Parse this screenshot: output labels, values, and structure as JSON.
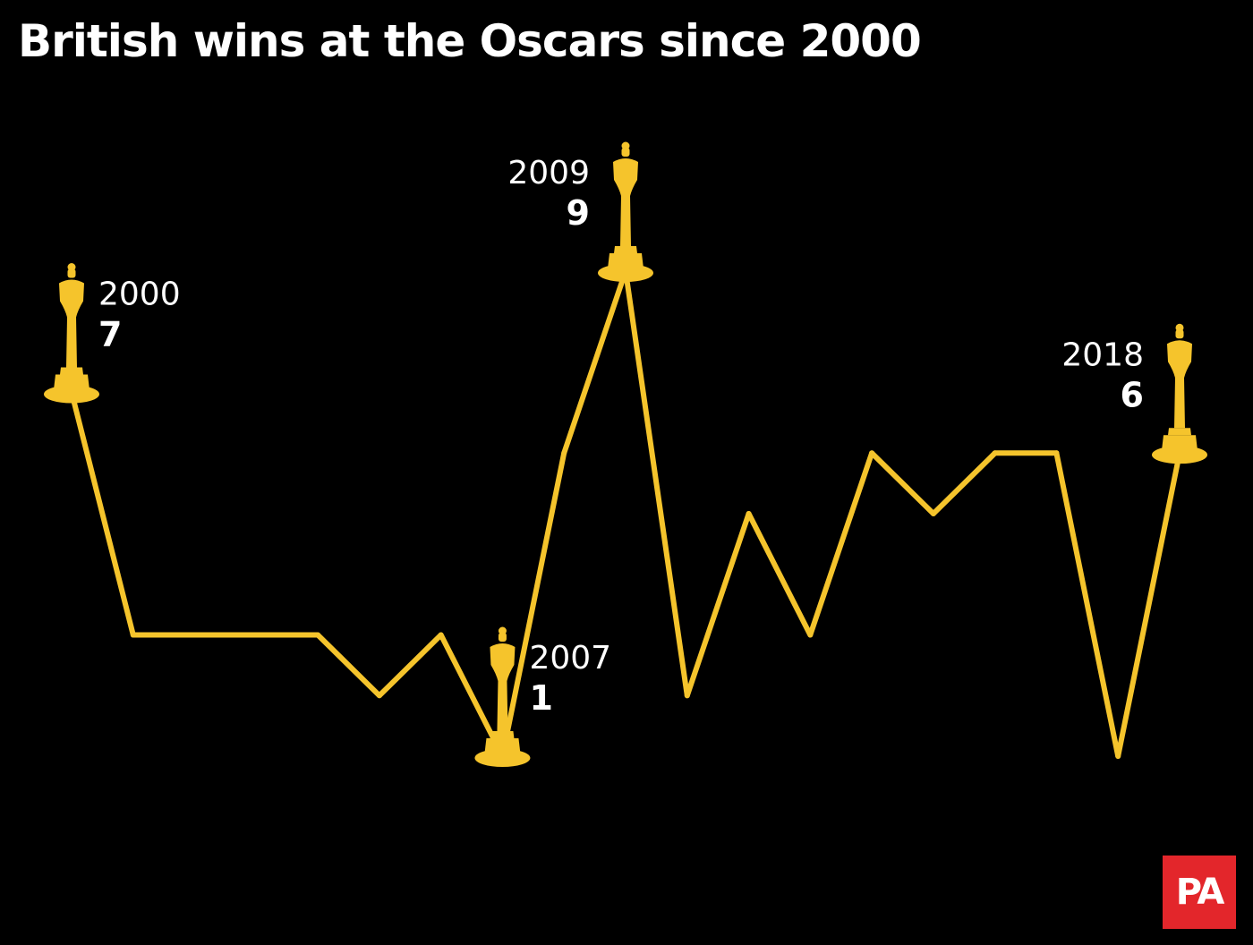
{
  "title": "British wins at the Oscars since 2000",
  "logo_text": "PA",
  "colors": {
    "background": "#000000",
    "line": "#f5c42c",
    "text": "#ffffff",
    "logo": "#e3262b"
  },
  "chart_data": {
    "type": "line",
    "title": "British wins at the Oscars since 2000",
    "xlabel": "",
    "ylabel": "",
    "x": [
      2000,
      2001,
      2002,
      2003,
      2004,
      2005,
      2006,
      2007,
      2008,
      2009,
      2010,
      2011,
      2012,
      2013,
      2014,
      2015,
      2016,
      2017,
      2018
    ],
    "series": [
      {
        "values": [
          7,
          3,
          3,
          3,
          3,
          2,
          3,
          1,
          6,
          9,
          2,
          5,
          3,
          6,
          5,
          6,
          6,
          1,
          6
        ]
      }
    ],
    "ylim": [
      1,
      9
    ],
    "grid": false,
    "axes_visible": false,
    "annotations": [
      {
        "x": 2000,
        "year_label": "2000",
        "value_label": "7",
        "side": "right",
        "icon": "oscar-statuette-icon"
      },
      {
        "x": 2007,
        "year_label": "2007",
        "value_label": "1",
        "side": "right",
        "icon": "oscar-statuette-icon"
      },
      {
        "x": 2009,
        "year_label": "2009",
        "value_label": "9",
        "side": "left",
        "icon": "oscar-statuette-icon"
      },
      {
        "x": 2018,
        "year_label": "2018",
        "value_label": "6",
        "side": "left",
        "icon": "oscar-statuette-icon"
      }
    ]
  }
}
